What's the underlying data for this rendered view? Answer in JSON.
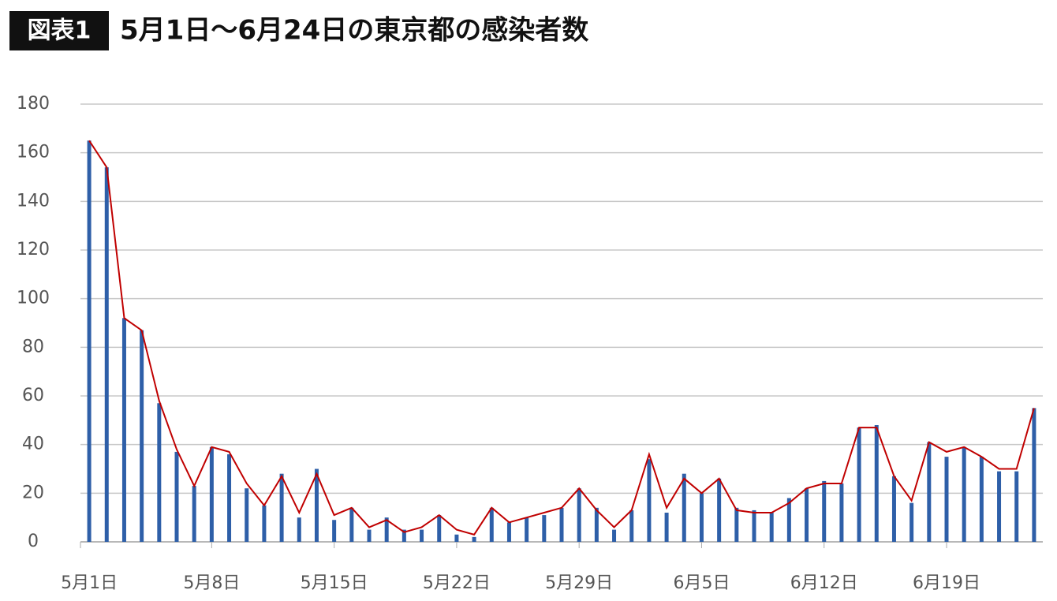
{
  "chart_data": {
    "type": "bar",
    "badge": "図表1",
    "title": "5月1日〜6月24日の東京都の感染者数",
    "categories": [
      "5月1日",
      null,
      null,
      null,
      null,
      null,
      null,
      "5月8日",
      null,
      null,
      null,
      null,
      null,
      null,
      "5月15日",
      null,
      null,
      null,
      null,
      null,
      null,
      "5月22日",
      null,
      null,
      null,
      null,
      null,
      null,
      "5月29日",
      null,
      null,
      null,
      null,
      null,
      null,
      "6月5日",
      null,
      null,
      null,
      null,
      null,
      null,
      "6月12日",
      null,
      null,
      null,
      null,
      null,
      null,
      "6月19日",
      null,
      null,
      null,
      null,
      null
    ],
    "series": [
      {
        "type": "bar",
        "color": "#2e5fa8",
        "values": [
          165,
          154,
          92,
          87,
          57,
          37,
          23,
          39,
          36,
          22,
          15,
          28,
          10,
          30,
          9,
          14,
          5,
          10,
          5,
          5,
          11,
          3,
          2,
          14,
          8,
          10,
          11,
          14,
          22,
          14,
          5,
          13,
          34,
          12,
          28,
          20,
          26,
          14,
          13,
          12,
          18,
          22,
          25,
          24,
          47,
          48,
          27,
          16,
          41,
          35,
          39,
          35,
          29,
          29,
          55
        ]
      },
      {
        "type": "line",
        "color": "#c00000",
        "values": [
          165,
          154,
          92,
          87,
          58,
          38,
          23,
          39,
          37,
          24,
          15,
          27,
          12,
          28,
          11,
          14,
          6,
          9,
          4,
          6,
          11,
          5,
          3,
          14,
          8,
          10,
          12,
          14,
          22,
          13,
          6,
          13,
          36,
          14,
          26,
          20,
          26,
          13,
          12,
          12,
          16,
          22,
          24,
          24,
          47,
          47,
          27,
          17,
          41,
          37,
          39,
          35,
          30,
          30,
          55
        ]
      }
    ],
    "ylim": [
      0,
      180
    ],
    "yticks": [
      0,
      20,
      40,
      60,
      80,
      100,
      120,
      140,
      160,
      180
    ],
    "grid": true
  }
}
